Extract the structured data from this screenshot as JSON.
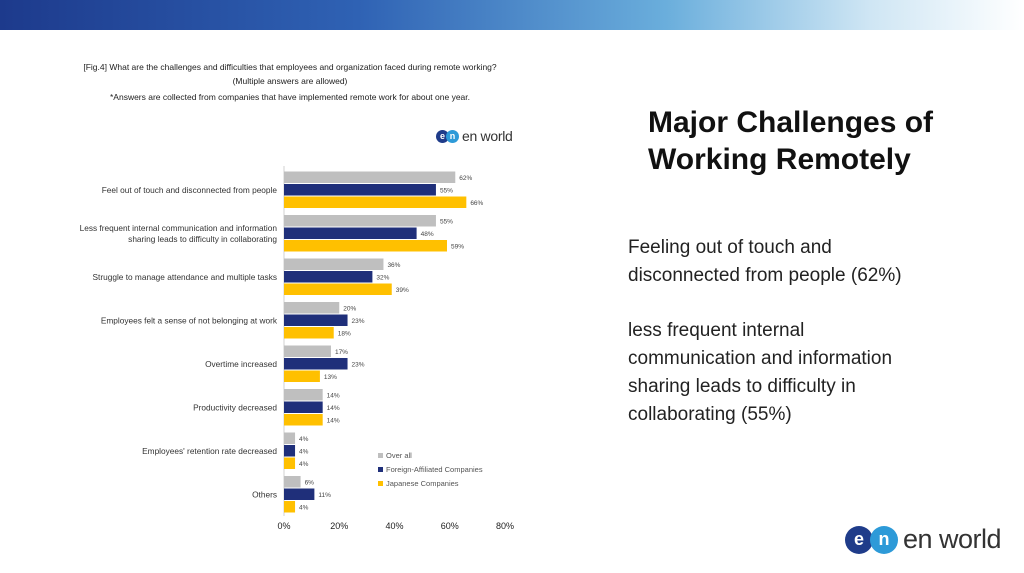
{
  "figure": {
    "title_line1": "[Fig.4] What are the challenges and difficulties that employees and organization faced during remote working?",
    "title_line2": "(Multiple answers are allowed)",
    "title_line3": "*Answers are collected from companies that have implemented remote work for about one year."
  },
  "logo_text": "en world",
  "logo_mark_e": "e",
  "logo_mark_n": "n",
  "slide": {
    "title_line1": "Major Challenges of",
    "title_line2": "Working Remotely",
    "point1_line1": "Feeling out of touch and",
    "point1_line2": "disconnected from people (62%)",
    "point2_line1": "less frequent internal",
    "point2_line2": "communication and information",
    "point2_line3": "sharing leads to difficulty in",
    "point2_line4": "collaborating (55%)"
  },
  "chart_data": {
    "type": "bar",
    "orientation": "horizontal",
    "categories": [
      [
        "Feel out of touch and disconnected from people"
      ],
      [
        "Less frequent internal communication and information",
        "sharing leads to difficulty in collaborating"
      ],
      [
        "Struggle to manage attendance and multiple tasks"
      ],
      [
        "Employees felt a sense of not belonging at work"
      ],
      [
        "Overtime increased"
      ],
      [
        "Productivity decreased"
      ],
      [
        "Employees' retention rate decreased"
      ],
      [
        "Others"
      ]
    ],
    "series": [
      {
        "name": "Over all",
        "color": "#bfbfbf",
        "values": [
          62,
          55,
          36,
          20,
          17,
          14,
          4,
          6
        ]
      },
      {
        "name": "Foreign-Affiliated Companies",
        "color": "#1f2f7a",
        "values": [
          55,
          48,
          32,
          23,
          23,
          14,
          4,
          11
        ]
      },
      {
        "name": "Japanese Companies",
        "color": "#ffc000",
        "values": [
          66,
          59,
          39,
          18,
          13,
          14,
          4,
          4
        ]
      }
    ],
    "xlim": [
      0,
      80
    ],
    "xticks": [
      "0%",
      "20%",
      "40%",
      "60%",
      "80%"
    ],
    "value_suffix": "%",
    "legend_position": "bottom-right"
  }
}
